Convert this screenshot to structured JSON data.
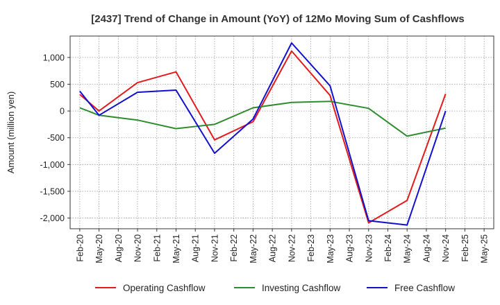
{
  "chart_data": {
    "type": "line",
    "title": "[2437]  Trend of Change in Amount (YoY) of 12Mo Moving Sum of Cashflows",
    "xlabel": "",
    "ylabel": "Amount (million yen)",
    "ylim": [
      -2200,
      1400
    ],
    "yticks": [
      1000,
      500,
      0,
      -500,
      -1000,
      -1500,
      -2000
    ],
    "ytick_labels": [
      "1,000",
      "500",
      "0",
      "-500",
      "-1,000",
      "-1,500",
      "-2,000"
    ],
    "grid": true,
    "legend_position": "bottom",
    "categories": [
      "Feb-20",
      "May-20",
      "Aug-20",
      "Nov-20",
      "Feb-21",
      "May-21",
      "Aug-21",
      "Nov-21",
      "Feb-22",
      "May-22",
      "Aug-22",
      "Nov-22",
      "Feb-23",
      "May-23",
      "Aug-23",
      "Nov-23",
      "Feb-24",
      "May-24",
      "Aug-24",
      "Nov-24",
      "Feb-25",
      "May-25"
    ],
    "series": [
      {
        "name": "Operating Cashflow",
        "color": "#e31a1c",
        "values": [
          310,
          0,
          null,
          530,
          null,
          730,
          null,
          -540,
          null,
          -200,
          null,
          1120,
          null,
          290,
          null,
          -2090,
          null,
          -1670,
          null,
          320,
          null,
          null
        ]
      },
      {
        "name": "Investing Cashflow",
        "color": "#2e8b2e",
        "values": [
          60,
          -80,
          null,
          -170,
          null,
          -330,
          null,
          -250,
          null,
          60,
          null,
          160,
          null,
          180,
          null,
          50,
          null,
          -470,
          null,
          -320,
          null,
          null
        ]
      },
      {
        "name": "Free Cashflow",
        "color": "#1010cc",
        "values": [
          370,
          -80,
          null,
          350,
          null,
          390,
          null,
          -790,
          null,
          -150,
          null,
          1270,
          null,
          470,
          null,
          -2050,
          null,
          -2130,
          null,
          0,
          null,
          null
        ]
      }
    ]
  }
}
